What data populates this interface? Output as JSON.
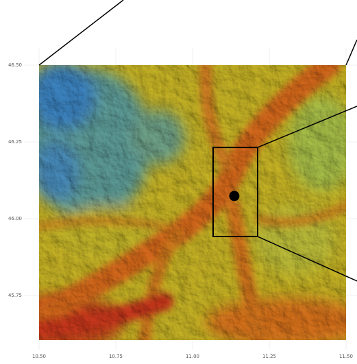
{
  "map": {
    "xlim": [
      10.5,
      11.5
    ],
    "ylim": [
      45.605,
      46.5
    ],
    "xticks": [
      {
        "value": 10.5,
        "label": "10.50"
      },
      {
        "value": 10.75,
        "label": "10.75"
      },
      {
        "value": 11,
        "label": "11.00"
      },
      {
        "value": 11.25,
        "label": "11.25"
      },
      {
        "value": 11.5,
        "label": "11.50"
      }
    ],
    "yticks": [
      {
        "value": 45.75,
        "label": "45.75"
      },
      {
        "value": 46,
        "label": "46.00"
      },
      {
        "value": 46.25,
        "label": "46.25"
      },
      {
        "value": 46.5,
        "label": "46.50"
      }
    ],
    "grid": true,
    "box": {
      "xmin": 11.067,
      "xmax": 11.212,
      "ymin": 45.942,
      "ymax": 46.232
    },
    "point": {
      "x": 11.136,
      "y": 46.074
    }
  }
}
